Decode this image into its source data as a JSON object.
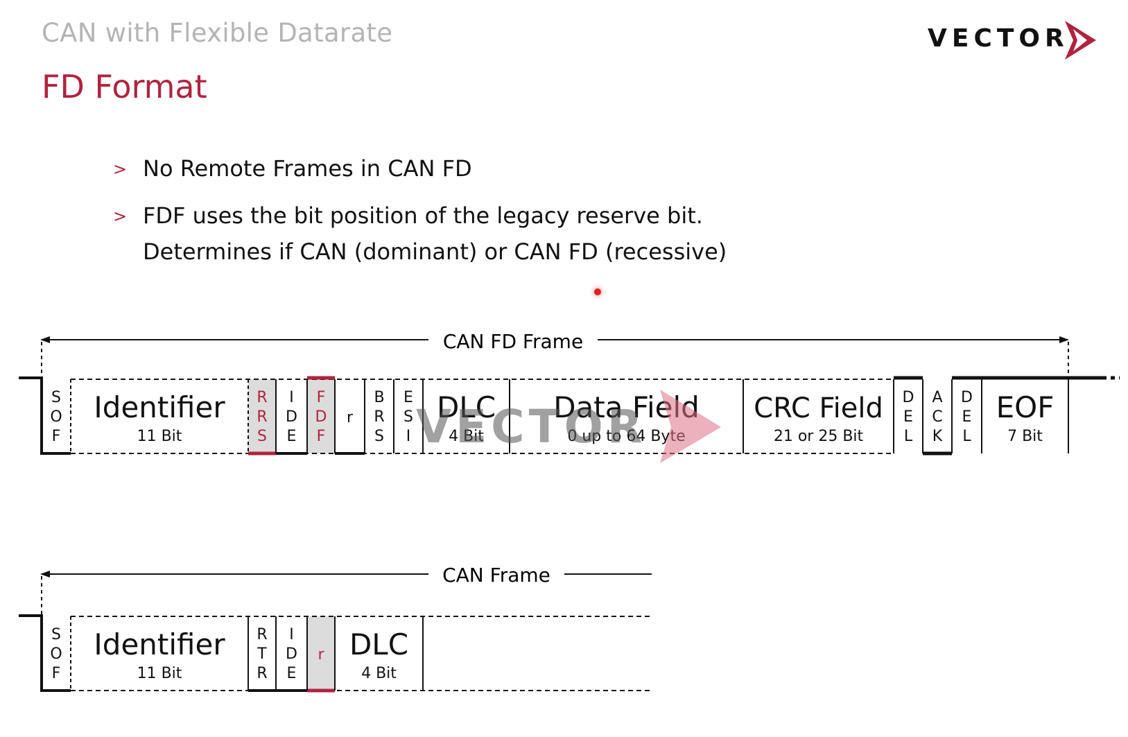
{
  "slide": {
    "supertitle": "CAN with Flexible Datarate",
    "title": "FD Format"
  },
  "logo": {
    "text": "VECTOR",
    "accent_color": "#b0233f"
  },
  "bullets": [
    {
      "marker": ">",
      "text": "No Remote Frames in CAN FD"
    },
    {
      "marker": ">",
      "text": "FDF uses the bit position of the legacy reserve bit.",
      "continuation": "Determines if CAN (dominant) or CAN FD (recessive)"
    }
  ],
  "colors": {
    "accent": "#b0233f",
    "highlight_fill": "#dcdcdc",
    "line": "#111111",
    "muted_text": "#b4b4b4"
  },
  "watermark": {
    "text": "VECTOR"
  },
  "diagram": {
    "can_fd_frame": {
      "label": "CAN FD Frame",
      "fields": [
        {
          "id": "sof",
          "letters": [
            "S",
            "O",
            "F"
          ]
        },
        {
          "id": "identifier",
          "name": "Identifier",
          "sub": "11 Bit"
        },
        {
          "id": "rrs",
          "letters": [
            "R",
            "R",
            "S"
          ],
          "highlight": true
        },
        {
          "id": "ide",
          "letters": [
            "I",
            "D",
            "E"
          ]
        },
        {
          "id": "fdf",
          "letters": [
            "F",
            "D",
            "F"
          ],
          "highlight": true
        },
        {
          "id": "r",
          "letters": [
            "r"
          ]
        },
        {
          "id": "brs",
          "letters": [
            "B",
            "R",
            "S"
          ]
        },
        {
          "id": "esi",
          "letters": [
            "E",
            "S",
            "I"
          ]
        },
        {
          "id": "dlc",
          "name": "DLC",
          "sub": "4 Bit"
        },
        {
          "id": "data",
          "name": "Data Field",
          "sub": "0 up to 64 Byte"
        },
        {
          "id": "crc",
          "name": "CRC Field",
          "sub": "21 or 25 Bit"
        },
        {
          "id": "crc_del",
          "letters": [
            "D",
            "E",
            "L"
          ]
        },
        {
          "id": "ack",
          "letters": [
            "A",
            "C",
            "K"
          ]
        },
        {
          "id": "ack_del",
          "letters": [
            "D",
            "E",
            "L"
          ]
        },
        {
          "id": "eof",
          "name": "EOF",
          "sub": "7 Bit"
        }
      ]
    },
    "can_frame": {
      "label": "CAN Frame",
      "fields": [
        {
          "id": "sof",
          "letters": [
            "S",
            "O",
            "F"
          ]
        },
        {
          "id": "identifier",
          "name": "Identifier",
          "sub": "11 Bit"
        },
        {
          "id": "rtr",
          "letters": [
            "R",
            "T",
            "R"
          ]
        },
        {
          "id": "ide",
          "letters": [
            "I",
            "D",
            "E"
          ]
        },
        {
          "id": "r",
          "letters": [
            "r"
          ],
          "highlight": true
        },
        {
          "id": "dlc",
          "name": "DLC",
          "sub": "4 Bit"
        }
      ]
    }
  }
}
